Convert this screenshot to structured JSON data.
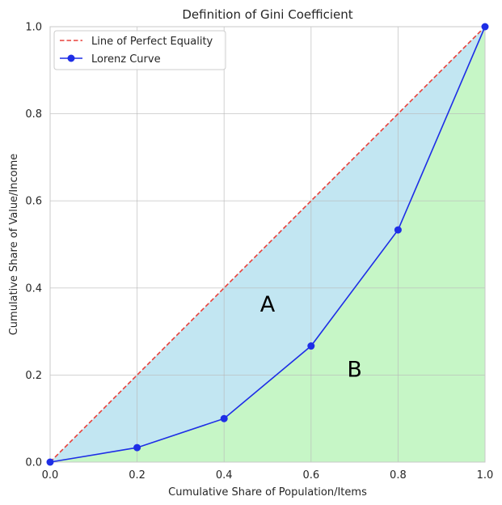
{
  "chart_data": {
    "type": "area",
    "title": "Definition of Gini Coefficient",
    "xlabel": "Cumulative Share of Population/Items",
    "ylabel": "Cumulative Share of Value/Income",
    "xlim": [
      0,
      1
    ],
    "ylim": [
      0,
      1
    ],
    "xticks": [
      0.0,
      0.2,
      0.4,
      0.6,
      0.8,
      1.0
    ],
    "yticks": [
      0.0,
      0.2,
      0.4,
      0.6,
      0.8,
      1.0
    ],
    "xtick_labels": [
      "0.0",
      "0.2",
      "0.4",
      "0.6",
      "0.8",
      "1.0"
    ],
    "ytick_labels": [
      "0.0",
      "0.2",
      "0.4",
      "0.6",
      "0.8",
      "1.0"
    ],
    "grid": true,
    "legend_position": "top-left",
    "series": [
      {
        "name": "Line of Perfect Equality",
        "x": [
          0,
          1
        ],
        "y": [
          0,
          1
        ],
        "color": "#e8403a",
        "style": "dashed"
      },
      {
        "name": "Lorenz Curve",
        "x": [
          0.0,
          0.2,
          0.4,
          0.6,
          0.8,
          1.0
        ],
        "y": [
          0.0,
          0.0333,
          0.1,
          0.2667,
          0.5333,
          1.0
        ],
        "color": "#1e2ee6",
        "marker": "circle"
      }
    ],
    "areas": {
      "between_equality_and_lorenz_color": "#c2e6f2",
      "under_lorenz_color": "#c6f6c6"
    },
    "annotations": [
      {
        "text": "A",
        "x": 0.5,
        "y": 0.36
      },
      {
        "text": "B",
        "x": 0.7,
        "y": 0.21
      }
    ]
  }
}
